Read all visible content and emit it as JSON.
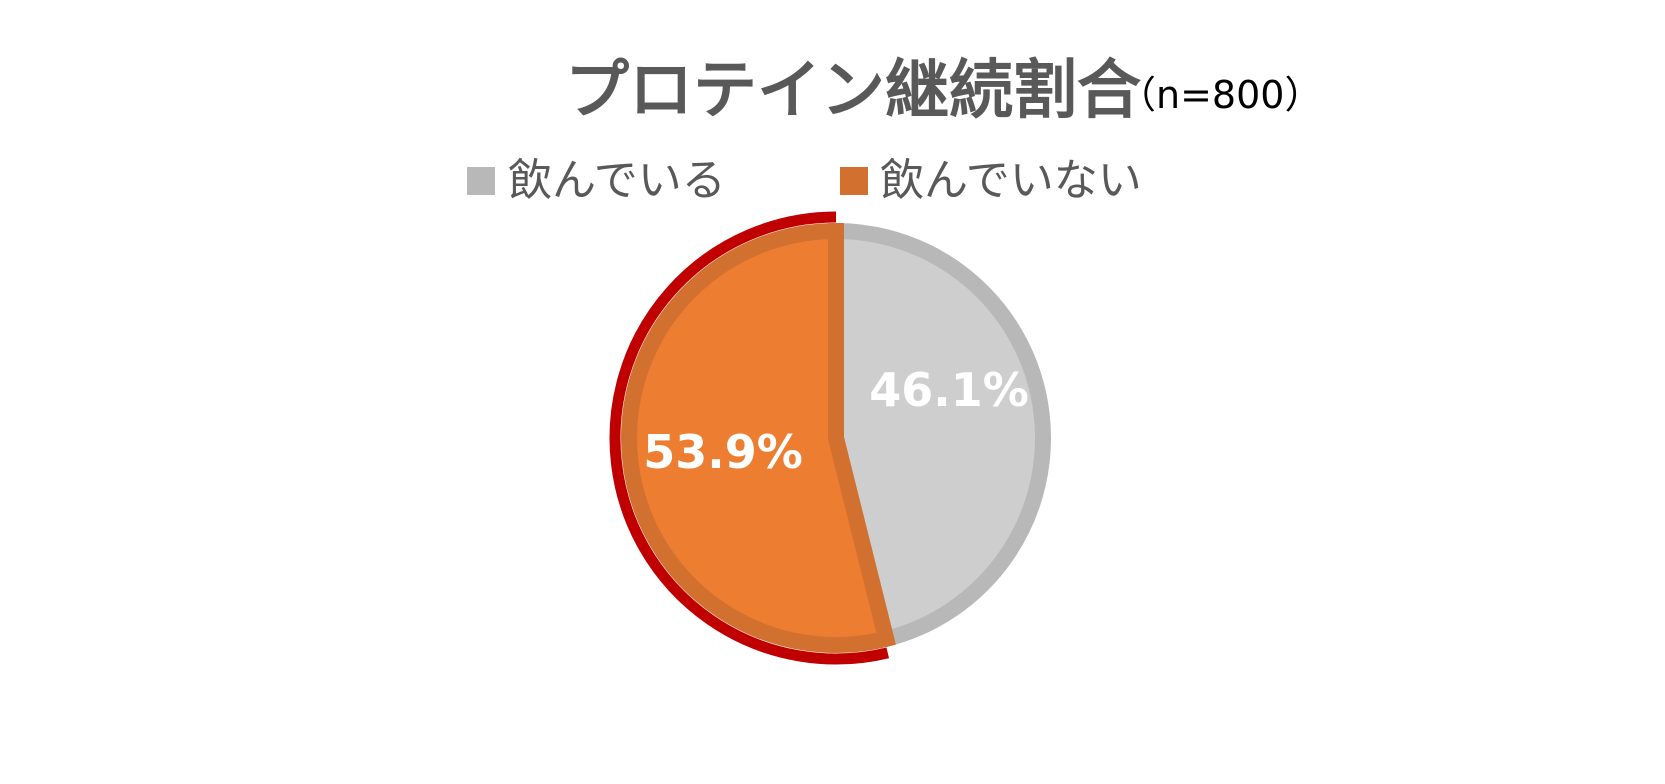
{
  "chart_data": {
    "type": "pie",
    "title": "プロテイン継続割合",
    "subtitle": "（n=800）",
    "categories": [
      "飲んでいる",
      "飲んでいない"
    ],
    "values": [
      46.1,
      53.9
    ],
    "data_labels": [
      "46.1%",
      "53.9%"
    ],
    "colors": {
      "飲んでいる": "#CFCECE",
      "飲んでいる_border": "#B9B8B8",
      "飲んでいない": "#EC7D31",
      "飲んでいない_border": "#D2702F",
      "highlight_outline": "#C00000"
    },
    "legend": "top",
    "start_angle": "12 o'clock, clockwise"
  }
}
